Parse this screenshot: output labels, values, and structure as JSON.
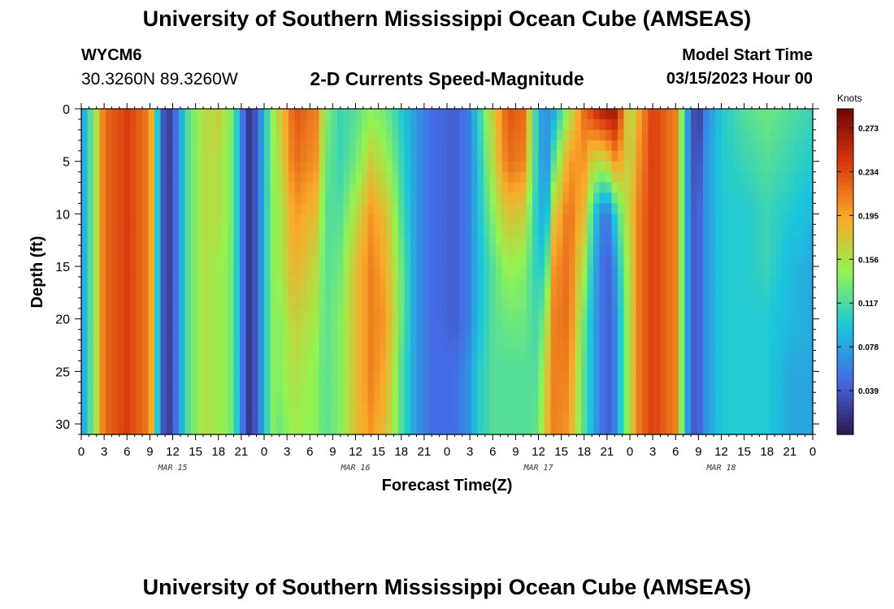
{
  "header": {
    "title": "University of Southern Mississippi Ocean Cube (AMSEAS)",
    "station": "WYCM6",
    "coords": "30.3260N  89.3260W",
    "plot_title": "2-D Currents Speed-Magnitude",
    "start_label": "Model Start Time",
    "start_value": "03/15/2023 Hour 00"
  },
  "footer": {
    "title": "University of Southern Mississippi Ocean Cube (AMSEAS)"
  },
  "chart_data": {
    "type": "heatmap",
    "title": "2-D Currents Speed-Magnitude",
    "xlabel": "Forecast Time(Z)",
    "ylabel": "Depth (ft)",
    "x_range_hours": [
      0,
      96
    ],
    "ylim": [
      0,
      31
    ],
    "x_tick_labels": [
      "0",
      "3",
      "6",
      "9",
      "12",
      "15",
      "18",
      "21",
      "0",
      "3",
      "6",
      "9",
      "12",
      "15",
      "18",
      "21",
      "0",
      "3",
      "6",
      "9",
      "12",
      "15",
      "18",
      "21",
      "0",
      "3",
      "6",
      "9",
      "12",
      "15",
      "18",
      "21",
      "0"
    ],
    "y_ticks": [
      0,
      5,
      10,
      15,
      20,
      25,
      30
    ],
    "date_labels": [
      {
        "label": "MAR 15",
        "hour": 12
      },
      {
        "label": "MAR 16",
        "hour": 36
      },
      {
        "label": "MAR 17",
        "hour": 60
      },
      {
        "label": "MAR 18",
        "hour": 84
      }
    ],
    "colorbar": {
      "label": "Knots",
      "vmin": 0.0,
      "vmax": 0.29,
      "ticks": [
        "0.273",
        "0.234",
        "0.195",
        "0.156",
        "0.117",
        "0.078",
        "0.039"
      ]
    },
    "profile_depths_ft": [
      0,
      5,
      10,
      15,
      20,
      25,
      31
    ],
    "speed_profiles_knots": [
      {
        "hour": 0,
        "speeds": [
          0.07,
          0.07,
          0.07,
          0.07,
          0.07,
          0.07,
          0.07
        ]
      },
      {
        "hour": 1,
        "speeds": [
          0.11,
          0.11,
          0.11,
          0.11,
          0.11,
          0.11,
          0.11
        ]
      },
      {
        "hour": 2,
        "speeds": [
          0.16,
          0.16,
          0.16,
          0.16,
          0.16,
          0.16,
          0.16
        ]
      },
      {
        "hour": 3,
        "speeds": [
          0.22,
          0.22,
          0.22,
          0.22,
          0.22,
          0.22,
          0.22
        ]
      },
      {
        "hour": 6,
        "speeds": [
          0.24,
          0.24,
          0.24,
          0.24,
          0.24,
          0.24,
          0.24
        ]
      },
      {
        "hour": 9,
        "speeds": [
          0.21,
          0.21,
          0.21,
          0.21,
          0.21,
          0.21,
          0.21
        ]
      },
      {
        "hour": 10,
        "speeds": [
          0.1,
          0.1,
          0.1,
          0.1,
          0.1,
          0.1,
          0.1
        ]
      },
      {
        "hour": 11,
        "speeds": [
          0.02,
          0.02,
          0.02,
          0.02,
          0.02,
          0.02,
          0.02
        ]
      },
      {
        "hour": 12,
        "speeds": [
          0.03,
          0.03,
          0.03,
          0.03,
          0.03,
          0.03,
          0.03
        ]
      },
      {
        "hour": 13,
        "speeds": [
          0.08,
          0.08,
          0.08,
          0.08,
          0.08,
          0.08,
          0.08
        ]
      },
      {
        "hour": 14,
        "speeds": [
          0.12,
          0.12,
          0.12,
          0.12,
          0.12,
          0.12,
          0.12
        ]
      },
      {
        "hour": 16,
        "speeds": [
          0.16,
          0.16,
          0.16,
          0.16,
          0.16,
          0.16,
          0.16
        ]
      },
      {
        "hour": 18,
        "speeds": [
          0.17,
          0.16,
          0.16,
          0.15,
          0.15,
          0.15,
          0.15
        ]
      },
      {
        "hour": 20,
        "speeds": [
          0.13,
          0.13,
          0.13,
          0.13,
          0.13,
          0.13,
          0.13
        ]
      },
      {
        "hour": 21,
        "speeds": [
          0.06,
          0.06,
          0.06,
          0.06,
          0.06,
          0.06,
          0.06
        ]
      },
      {
        "hour": 22,
        "speeds": [
          0.02,
          0.02,
          0.02,
          0.02,
          0.02,
          0.02,
          0.02
        ]
      },
      {
        "hour": 23,
        "speeds": [
          0.04,
          0.04,
          0.04,
          0.04,
          0.04,
          0.04,
          0.04
        ]
      },
      {
        "hour": 24,
        "speeds": [
          0.09,
          0.09,
          0.09,
          0.09,
          0.09,
          0.09,
          0.09
        ]
      },
      {
        "hour": 25,
        "speeds": [
          0.14,
          0.14,
          0.14,
          0.14,
          0.14,
          0.14,
          0.14
        ]
      },
      {
        "hour": 26,
        "speeds": [
          0.17,
          0.16,
          0.15,
          0.15,
          0.14,
          0.14,
          0.13
        ]
      },
      {
        "hour": 28,
        "speeds": [
          0.23,
          0.22,
          0.2,
          0.19,
          0.17,
          0.16,
          0.15
        ]
      },
      {
        "hour": 31,
        "speeds": [
          0.21,
          0.2,
          0.18,
          0.16,
          0.15,
          0.14,
          0.14
        ]
      },
      {
        "hour": 32,
        "speeds": [
          0.14,
          0.13,
          0.12,
          0.12,
          0.12,
          0.12,
          0.12
        ]
      },
      {
        "hour": 34,
        "speeds": [
          0.11,
          0.11,
          0.12,
          0.13,
          0.14,
          0.14,
          0.14
        ]
      },
      {
        "hour": 36,
        "speeds": [
          0.12,
          0.13,
          0.16,
          0.18,
          0.18,
          0.18,
          0.18
        ]
      },
      {
        "hour": 38,
        "speeds": [
          0.14,
          0.17,
          0.2,
          0.21,
          0.21,
          0.21,
          0.2
        ]
      },
      {
        "hour": 40,
        "speeds": [
          0.13,
          0.15,
          0.18,
          0.19,
          0.2,
          0.19,
          0.18
        ]
      },
      {
        "hour": 42,
        "speeds": [
          0.1,
          0.11,
          0.12,
          0.13,
          0.13,
          0.12,
          0.12
        ]
      },
      {
        "hour": 44,
        "speeds": [
          0.07,
          0.07,
          0.07,
          0.07,
          0.07,
          0.07,
          0.07
        ]
      },
      {
        "hour": 46,
        "speeds": [
          0.05,
          0.05,
          0.05,
          0.05,
          0.05,
          0.05,
          0.05
        ]
      },
      {
        "hour": 49,
        "speeds": [
          0.04,
          0.04,
          0.04,
          0.04,
          0.04,
          0.05,
          0.05
        ]
      },
      {
        "hour": 51,
        "speeds": [
          0.06,
          0.06,
          0.06,
          0.06,
          0.06,
          0.07,
          0.07
        ]
      },
      {
        "hour": 52,
        "speeds": [
          0.1,
          0.09,
          0.09,
          0.09,
          0.09,
          0.1,
          0.1
        ]
      },
      {
        "hour": 54,
        "speeds": [
          0.17,
          0.16,
          0.14,
          0.12,
          0.12,
          0.12,
          0.12
        ]
      },
      {
        "hour": 56,
        "speeds": [
          0.23,
          0.22,
          0.18,
          0.15,
          0.13,
          0.12,
          0.12
        ]
      },
      {
        "hour": 58,
        "speeds": [
          0.22,
          0.21,
          0.17,
          0.14,
          0.13,
          0.12,
          0.12
        ]
      },
      {
        "hour": 59,
        "speeds": [
          0.16,
          0.15,
          0.13,
          0.12,
          0.12,
          0.12,
          0.12
        ]
      },
      {
        "hour": 60,
        "speeds": [
          0.08,
          0.09,
          0.09,
          0.1,
          0.11,
          0.12,
          0.13
        ]
      },
      {
        "hour": 61,
        "speeds": [
          0.07,
          0.06,
          0.08,
          0.11,
          0.15,
          0.17,
          0.18
        ]
      },
      {
        "hour": 62,
        "speeds": [
          0.08,
          0.12,
          0.17,
          0.2,
          0.21,
          0.21,
          0.21
        ]
      },
      {
        "hour": 64,
        "speeds": [
          0.15,
          0.2,
          0.22,
          0.22,
          0.22,
          0.21,
          0.2
        ]
      },
      {
        "hour": 66,
        "speeds": [
          0.22,
          0.2,
          0.18,
          0.15,
          0.13,
          0.12,
          0.12
        ]
      },
      {
        "hour": 67,
        "speeds": [
          0.24,
          0.17,
          0.12,
          0.1,
          0.09,
          0.09,
          0.09
        ]
      },
      {
        "hour": 68,
        "speeds": [
          0.26,
          0.16,
          0.07,
          0.06,
          0.06,
          0.06,
          0.06
        ]
      },
      {
        "hour": 69,
        "speeds": [
          0.27,
          0.17,
          0.05,
          0.04,
          0.04,
          0.04,
          0.04
        ]
      },
      {
        "hour": 70,
        "speeds": [
          0.27,
          0.2,
          0.1,
          0.07,
          0.06,
          0.06,
          0.06
        ]
      },
      {
        "hour": 71,
        "speeds": [
          0.22,
          0.19,
          0.14,
          0.12,
          0.11,
          0.11,
          0.11
        ]
      },
      {
        "hour": 72,
        "speeds": [
          0.15,
          0.16,
          0.17,
          0.16,
          0.16,
          0.16,
          0.16
        ]
      },
      {
        "hour": 73,
        "speeds": [
          0.19,
          0.2,
          0.21,
          0.21,
          0.21,
          0.21,
          0.21
        ]
      },
      {
        "hour": 75,
        "speeds": [
          0.24,
          0.24,
          0.24,
          0.24,
          0.24,
          0.24,
          0.24
        ]
      },
      {
        "hour": 78,
        "speeds": [
          0.21,
          0.21,
          0.21,
          0.21,
          0.21,
          0.21,
          0.21
        ]
      },
      {
        "hour": 79,
        "speeds": [
          0.12,
          0.12,
          0.12,
          0.12,
          0.12,
          0.12,
          0.12
        ]
      },
      {
        "hour": 80,
        "speeds": [
          0.04,
          0.04,
          0.04,
          0.04,
          0.04,
          0.04,
          0.04
        ]
      },
      {
        "hour": 81,
        "speeds": [
          0.02,
          0.03,
          0.04,
          0.04,
          0.04,
          0.04,
          0.04
        ]
      },
      {
        "hour": 82,
        "speeds": [
          0.06,
          0.07,
          0.07,
          0.07,
          0.07,
          0.07,
          0.07
        ]
      },
      {
        "hour": 84,
        "speeds": [
          0.1,
          0.1,
          0.1,
          0.1,
          0.1,
          0.1,
          0.1
        ]
      },
      {
        "hour": 87,
        "speeds": [
          0.12,
          0.11,
          0.1,
          0.1,
          0.1,
          0.1,
          0.1
        ]
      },
      {
        "hour": 90,
        "speeds": [
          0.13,
          0.12,
          0.11,
          0.11,
          0.1,
          0.1,
          0.1
        ]
      },
      {
        "hour": 93,
        "speeds": [
          0.12,
          0.11,
          0.1,
          0.09,
          0.09,
          0.08,
          0.08
        ]
      },
      {
        "hour": 96,
        "speeds": [
          0.11,
          0.1,
          0.09,
          0.08,
          0.08,
          0.08,
          0.08
        ]
      }
    ]
  }
}
